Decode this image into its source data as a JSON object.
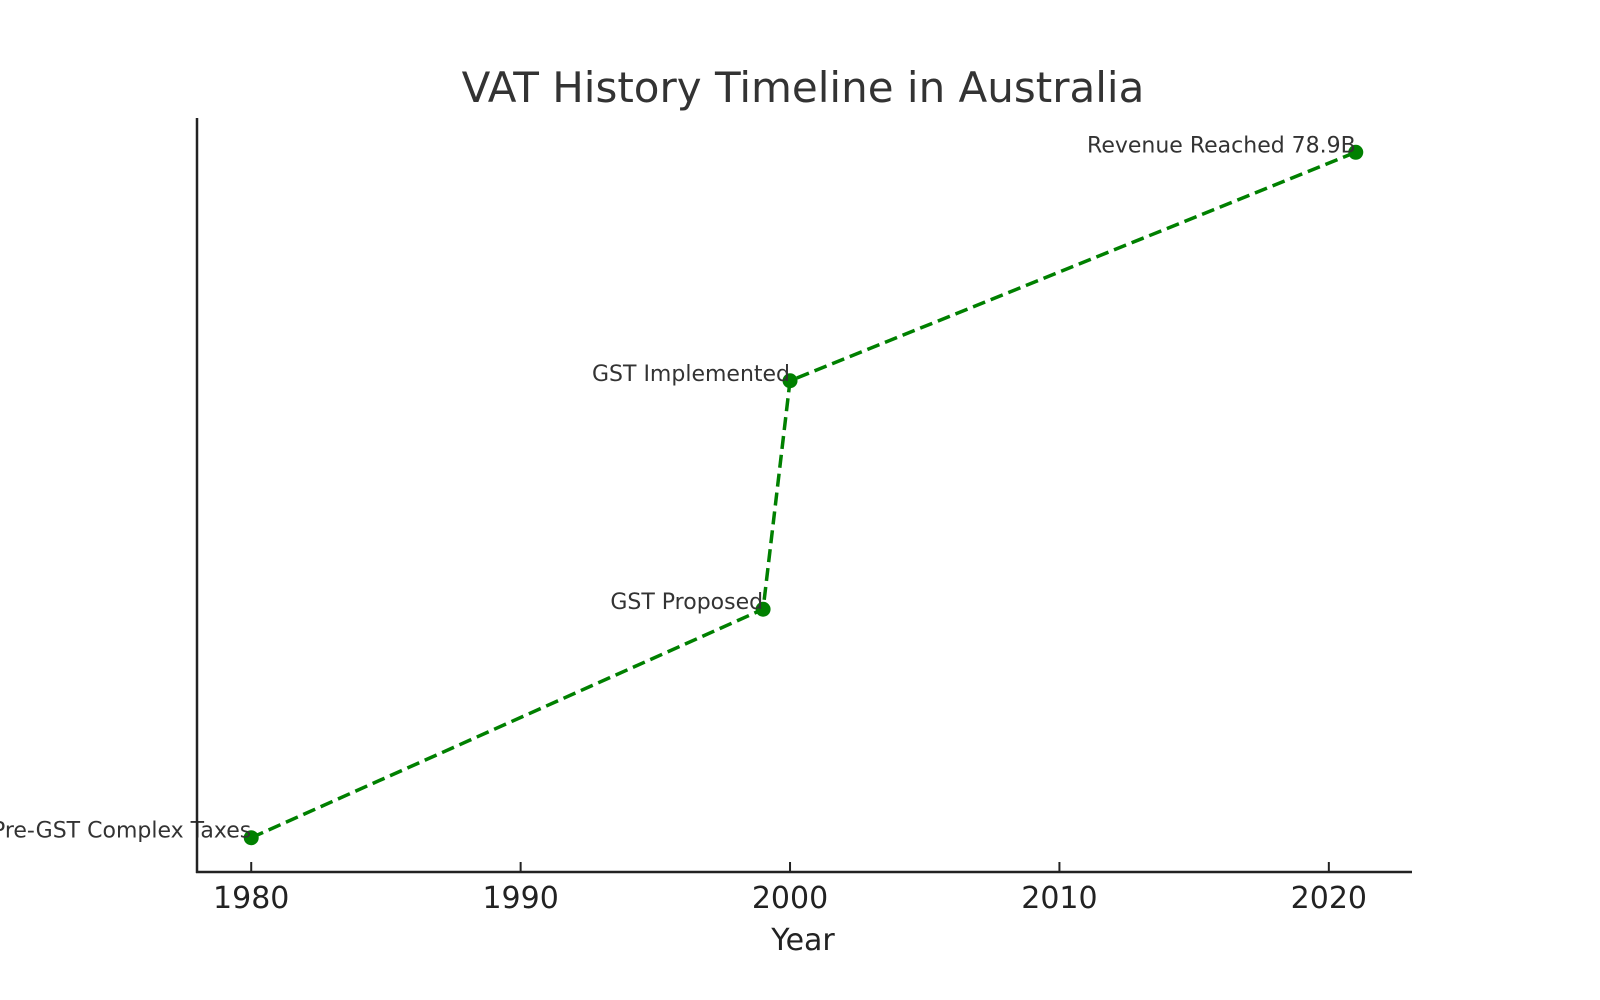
{
  "chart_data": {
    "type": "line",
    "title": "VAT History Timeline in Australia",
    "xlabel": "Year",
    "ylabel": "",
    "xlim": [
      1977.95,
      2023.05
    ],
    "ylim": [
      -0.15,
      3.15
    ],
    "xticks": [
      1980,
      1990,
      2000,
      2010,
      2020
    ],
    "yticks_visible": false,
    "grid": false,
    "line_style": "dashed",
    "marker": "circle",
    "color": "#008000",
    "points": [
      {
        "x": 1980,
        "y": 0,
        "label": "Pre-GST Complex Taxes"
      },
      {
        "x": 1999,
        "y": 1,
        "label": "GST Proposed"
      },
      {
        "x": 2000,
        "y": 2,
        "label": "GST Implemented"
      },
      {
        "x": 2021,
        "y": 3,
        "label": "Revenue Reached 78.9B"
      }
    ]
  }
}
